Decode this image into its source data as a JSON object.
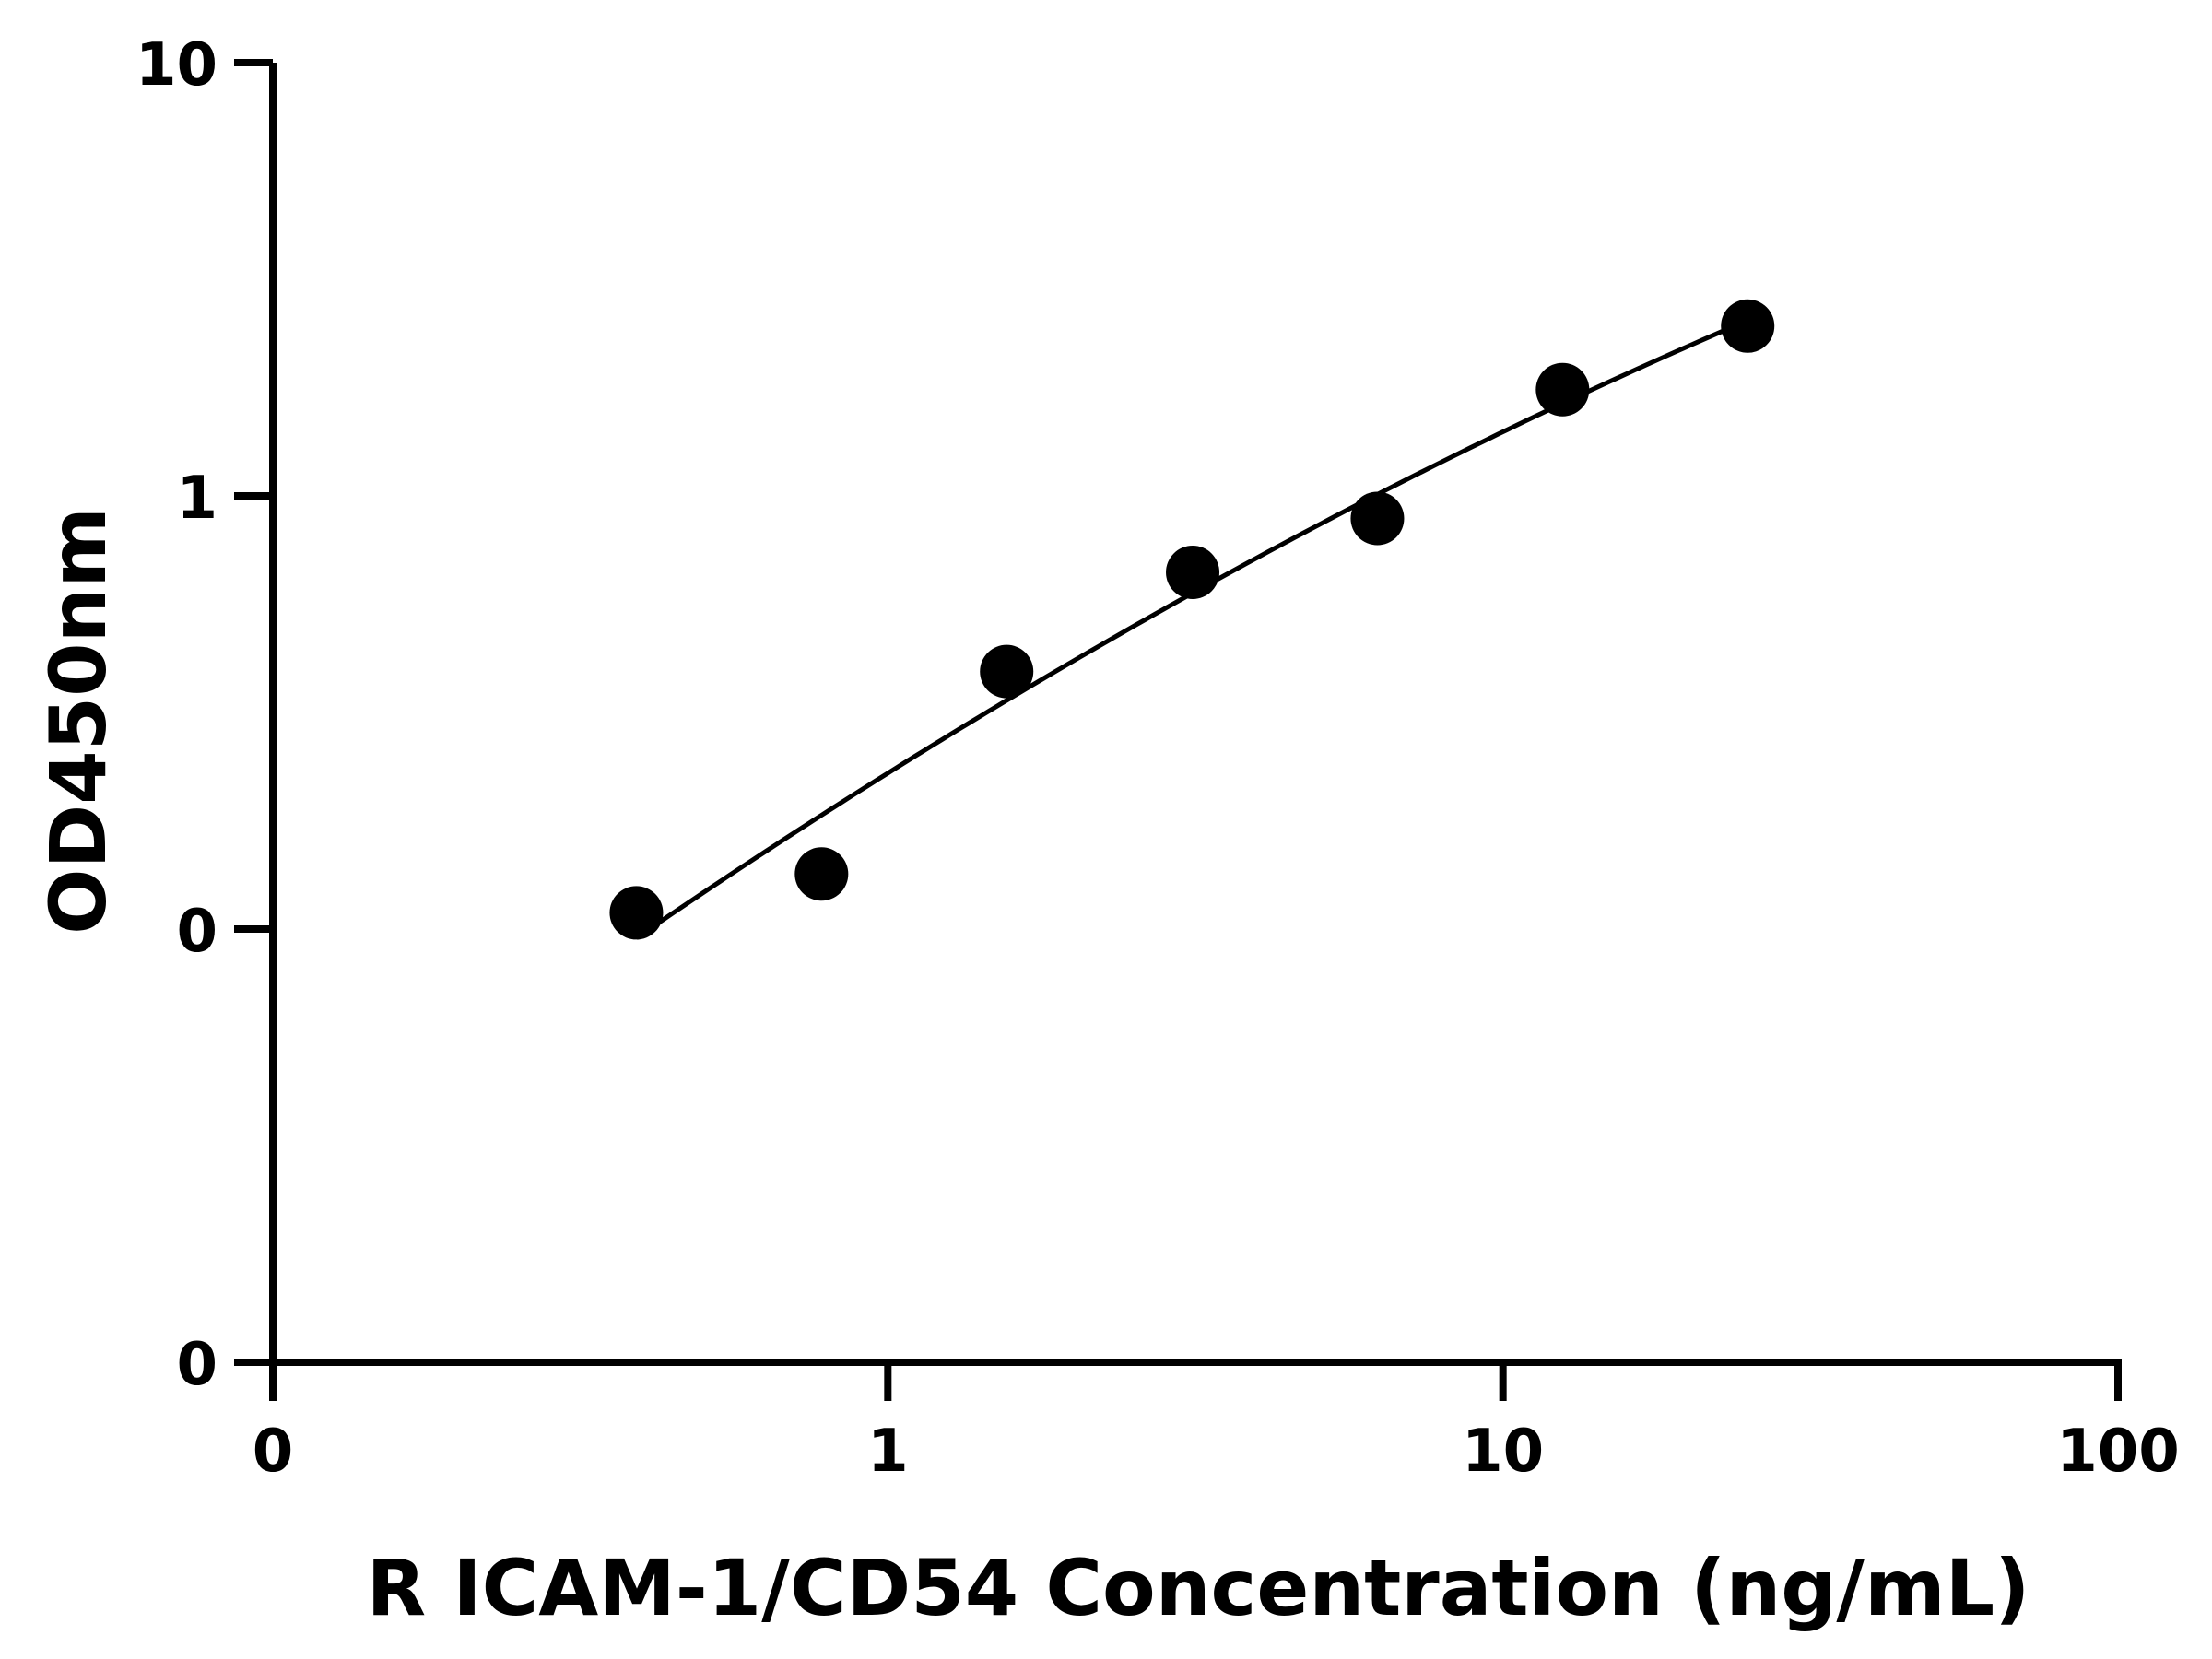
{
  "chart_data": {
    "type": "scatter",
    "title": "",
    "xlabel": "R ICAM-1/CD54 Concentration (ng/mL)",
    "ylabel": "OD450nm",
    "xscale": "log",
    "yscale": "log",
    "xlim": [
      0.1,
      100
    ],
    "ylim": [
      0.01,
      10
    ],
    "x_ticks": [
      {
        "value": 0.1,
        "label": "0"
      },
      {
        "value": 1,
        "label": "1"
      },
      {
        "value": 10,
        "label": "10"
      },
      {
        "value": 100,
        "label": "100"
      }
    ],
    "y_ticks": [
      {
        "value": 0.01,
        "label": "0"
      },
      {
        "value": 0.1,
        "label": "0"
      },
      {
        "value": 1,
        "label": "1"
      },
      {
        "value": 10,
        "label": "10"
      }
    ],
    "points": [
      {
        "x": 0.39,
        "y": 0.109
      },
      {
        "x": 0.78,
        "y": 0.134
      },
      {
        "x": 1.56,
        "y": 0.393
      },
      {
        "x": 3.13,
        "y": 0.666
      },
      {
        "x": 6.25,
        "y": 0.887
      },
      {
        "x": 12.5,
        "y": 1.759
      },
      {
        "x": 25,
        "y": 2.466
      }
    ],
    "fit_curve": {
      "x_range": [
        0.39,
        25
      ]
    },
    "colors": {
      "axis": "#000000",
      "marker": "#000000",
      "curve": "#000000"
    },
    "grid": false,
    "legend": "none"
  }
}
